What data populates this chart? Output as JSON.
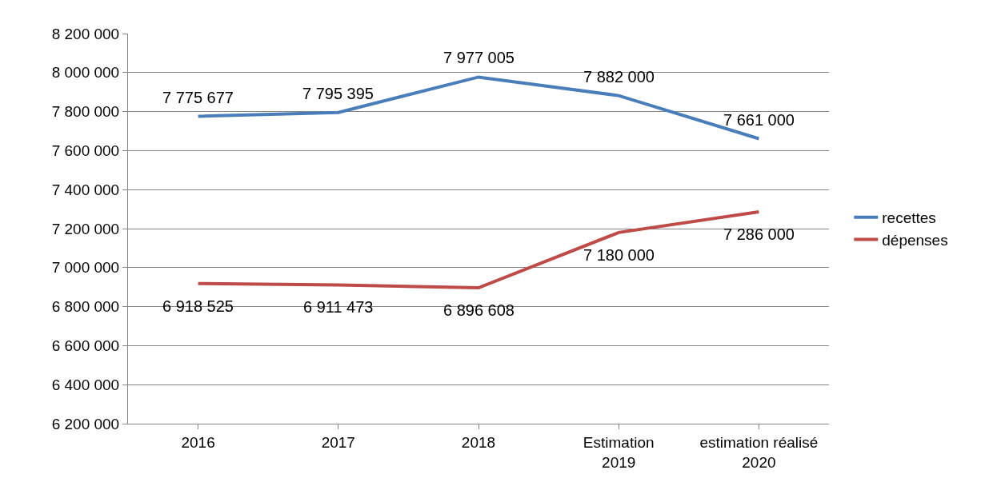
{
  "chart_data": {
    "type": "line",
    "categories": [
      "2016",
      "2017",
      "2018",
      "Estimation 2019",
      "estimation réalisé 2020"
    ],
    "series": [
      {
        "name": "recettes",
        "color": "#4a7ebb",
        "values": [
          7775677,
          7795395,
          7977005,
          7882000,
          7661000
        ],
        "value_labels": [
          "7 775 677",
          "7 795 395",
          "7 977 005",
          "7 882 000",
          "7 661 000"
        ]
      },
      {
        "name": "dépenses",
        "color": "#be4b48",
        "values": [
          6918525,
          6911473,
          6896608,
          7180000,
          7286000
        ],
        "value_labels": [
          "6 918 525",
          "6 911 473",
          "6 896 608",
          "7 180 000",
          "7 286 000"
        ]
      }
    ],
    "ylim": [
      6200000,
      8200000
    ],
    "yticks": [
      {
        "value": 6200000,
        "label": "6 200 000"
      },
      {
        "value": 6400000,
        "label": "6 400 000"
      },
      {
        "value": 6600000,
        "label": "6 600 000"
      },
      {
        "value": 6800000,
        "label": "6 800 000"
      },
      {
        "value": 7000000,
        "label": "7 000 000"
      },
      {
        "value": 7200000,
        "label": "7 200 000"
      },
      {
        "value": 7400000,
        "label": "7 400 000"
      },
      {
        "value": 7600000,
        "label": "7 600 000"
      },
      {
        "value": 7800000,
        "label": "7 800 000"
      },
      {
        "value": 8000000,
        "label": "8 000 000"
      },
      {
        "value": 8200000,
        "label": "8 200 000"
      }
    ],
    "grid": "y",
    "legend": "right",
    "marker": "none",
    "line_style": "solid"
  }
}
